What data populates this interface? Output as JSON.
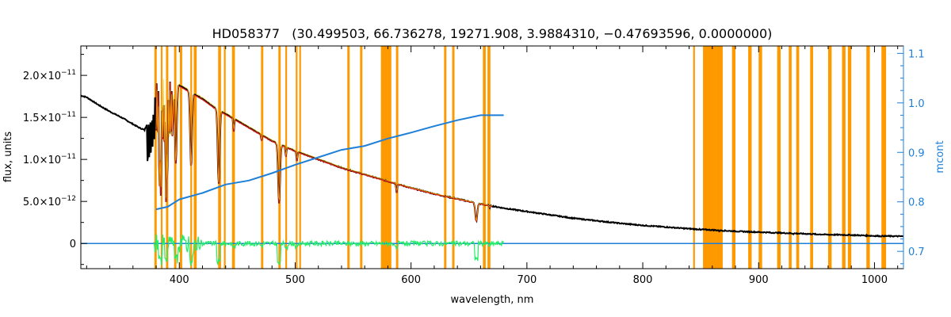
{
  "chart_data": {
    "type": "line",
    "title": "HD058377   (30.499503, 66.736278, 19271.908, 3.9884310, −0.47693596, 0.0000000)",
    "xlabel": "wavelength, nm",
    "ylabel": "flux, units",
    "y2label": "mcont",
    "xlim": [
      315,
      1025
    ],
    "ylim": [
      -3e-12,
      2.35e-11
    ],
    "y2lim": [
      0.665,
      1.115
    ],
    "x_ticks": [
      400,
      500,
      600,
      700,
      800,
      900,
      1000
    ],
    "x_ticklabels": [
      "400",
      "500",
      "600",
      "700",
      "800",
      "900",
      "1000"
    ],
    "y_ticks": [
      0,
      5e-12,
      1e-11,
      1.5e-11,
      2e-11
    ],
    "y_ticklabels": [
      {
        "mant": "0",
        "exp": ""
      },
      {
        "mant": "5.0×10",
        "exp": "−12"
      },
      {
        "mant": "1.0×10",
        "exp": "−11"
      },
      {
        "mant": "1.5×10",
        "exp": "−11"
      },
      {
        "mant": "2.0×10",
        "exp": "−11"
      }
    ],
    "y2_ticks": [
      0.7,
      0.8,
      0.9,
      1.0,
      1.1
    ],
    "y2_ticklabels": [
      "0.7",
      "0.8",
      "0.9",
      "1.0",
      "1.1"
    ],
    "colors": {
      "observed": "#000000",
      "model": "#e0201a",
      "model_alt": "#f0c000",
      "continuum": "#1e7fd8",
      "residual": "#22ee66",
      "masked": "#ff9900",
      "right_axis": "#1e7fd8"
    },
    "masked_ranges": [
      [
        378.5,
        380.5
      ],
      [
        384,
        385.5
      ],
      [
        388.5,
        390.5
      ],
      [
        395.5,
        397.5
      ],
      [
        400.5,
        402.5
      ],
      [
        409.5,
        411
      ],
      [
        412.5,
        415
      ],
      [
        433.5,
        436
      ],
      [
        438.5,
        440
      ],
      [
        445.5,
        448
      ],
      [
        470.5,
        472.5
      ],
      [
        485.5,
        487.5
      ],
      [
        491.5,
        493
      ],
      [
        500.5,
        502
      ],
      [
        503.5,
        505
      ],
      [
        545,
        547
      ],
      [
        556,
        558
      ],
      [
        574,
        583
      ],
      [
        587,
        589
      ],
      [
        628.5,
        630.5
      ],
      [
        635.5,
        637.5
      ],
      [
        662,
        664.5
      ],
      [
        666,
        668.5
      ],
      [
        843.5,
        845
      ],
      [
        852,
        869
      ],
      [
        877,
        880
      ],
      [
        891,
        894
      ],
      [
        900,
        903
      ],
      [
        916,
        919
      ],
      [
        926,
        928.5
      ],
      [
        932.5,
        935
      ],
      [
        944.5,
        947
      ],
      [
        960,
        963
      ],
      [
        972,
        975
      ],
      [
        977,
        980
      ],
      [
        993,
        996
      ],
      [
        1006,
        1010
      ]
    ],
    "observed_continuum": [
      [
        315,
        1.76e-11
      ],
      [
        320,
        1.74e-11
      ],
      [
        330,
        1.65e-11
      ],
      [
        340,
        1.57e-11
      ],
      [
        350,
        1.5e-11
      ],
      [
        360,
        1.42e-11
      ],
      [
        365,
        1.38e-11
      ],
      [
        370,
        1.35e-11
      ],
      [
        373,
        1.45e-11
      ],
      [
        376,
        1.7e-11
      ],
      [
        380,
        2.02e-11
      ],
      [
        390,
        1.96e-11
      ],
      [
        400,
        1.88e-11
      ],
      [
        410,
        1.8e-11
      ],
      [
        420,
        1.72e-11
      ],
      [
        430,
        1.62e-11
      ],
      [
        440,
        1.54e-11
      ],
      [
        450,
        1.46e-11
      ],
      [
        460,
        1.38e-11
      ],
      [
        470,
        1.3e-11
      ],
      [
        480,
        1.22e-11
      ],
      [
        490,
        1.16e-11
      ],
      [
        500,
        1.1e-11
      ],
      [
        520,
        1e-11
      ],
      [
        540,
        9e-12
      ],
      [
        560,
        8.2e-12
      ],
      [
        580,
        7.4e-12
      ],
      [
        600,
        6.6e-12
      ],
      [
        620,
        5.9e-12
      ],
      [
        640,
        5.3e-12
      ],
      [
        660,
        4.7e-12
      ],
      [
        680,
        4.2e-12
      ],
      [
        700,
        3.8e-12
      ],
      [
        720,
        3.4e-12
      ],
      [
        740,
        3e-12
      ],
      [
        760,
        2.7e-12
      ],
      [
        780,
        2.4e-12
      ],
      [
        800,
        2.15e-12
      ],
      [
        820,
        1.95e-12
      ],
      [
        840,
        1.75e-12
      ],
      [
        860,
        1.6e-12
      ],
      [
        880,
        1.45e-12
      ],
      [
        900,
        1.35e-12
      ],
      [
        920,
        1.25e-12
      ],
      [
        940,
        1.15e-12
      ],
      [
        960,
        1.05e-12
      ],
      [
        980,
        1e-12
      ],
      [
        1000,
        9e-13
      ],
      [
        1025,
        8.5e-13
      ]
    ],
    "absorption_lines": [
      [
        383.5,
        0.45
      ],
      [
        388.9,
        0.45
      ],
      [
        397,
        0.5
      ],
      [
        410.2,
        0.5
      ],
      [
        434,
        0.55
      ],
      [
        447,
        0.1
      ],
      [
        471,
        0.05
      ],
      [
        486.1,
        0.6
      ],
      [
        492,
        0.1
      ],
      [
        501.5,
        0.1
      ],
      [
        587.6,
        0.15
      ],
      [
        656.3,
        0.45
      ],
      [
        667.8,
        0.05
      ],
      [
        850,
        0.05
      ],
      [
        866,
        0.05
      ],
      [
        911,
        0.05
      ],
      [
        930,
        0.05
      ],
      [
        950,
        0.05
      ],
      [
        1005,
        0.05
      ]
    ],
    "model_range": [
      380,
      670
    ],
    "continuum_curve": [
      [
        380,
        0.785
      ],
      [
        390,
        0.79
      ],
      [
        400,
        0.805
      ],
      [
        420,
        0.818
      ],
      [
        440,
        0.835
      ],
      [
        460,
        0.843
      ],
      [
        480,
        0.858
      ],
      [
        500,
        0.875
      ],
      [
        520,
        0.89
      ],
      [
        540,
        0.905
      ],
      [
        560,
        0.913
      ],
      [
        580,
        0.928
      ],
      [
        600,
        0.94
      ],
      [
        620,
        0.953
      ],
      [
        640,
        0.965
      ],
      [
        660,
        0.975
      ],
      [
        680,
        0.975
      ]
    ],
    "residual_range": [
      378,
      680
    ],
    "baseline_range": [
      315,
      1025
    ]
  }
}
